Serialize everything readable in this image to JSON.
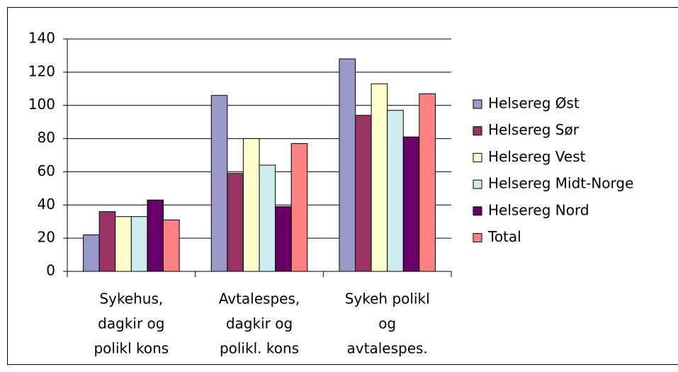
{
  "chart_data": {
    "type": "bar",
    "categories": [
      [
        "Sykehus,",
        "dagkir og",
        "polikl kons"
      ],
      [
        "Avtalespes,",
        "dagkir og",
        "polikl. kons"
      ],
      [
        "Sykeh polikl",
        "og",
        "avtalespes."
      ]
    ],
    "series": [
      {
        "name": "Helsereg Øst",
        "color": "#9999cc",
        "values": [
          22,
          106,
          128
        ]
      },
      {
        "name": "Helsereg Sør",
        "color": "#993366",
        "values": [
          36,
          59,
          94
        ]
      },
      {
        "name": "Helsereg Vest",
        "color": "#ffffcc",
        "values": [
          33,
          80,
          113
        ]
      },
      {
        "name": "Helsereg Midt-Norge",
        "color": "#ccecf0",
        "values": [
          33,
          64,
          97
        ]
      },
      {
        "name": "Helsereg Nord",
        "color": "#660066",
        "values": [
          43,
          39,
          81
        ]
      },
      {
        "name": "Total",
        "color": "#ff8080",
        "values": [
          31,
          77,
          107
        ]
      }
    ],
    "ylim": [
      0,
      140
    ],
    "yticks": [
      0,
      20,
      40,
      60,
      80,
      100,
      120,
      140
    ],
    "grid": true,
    "legend": "right"
  }
}
